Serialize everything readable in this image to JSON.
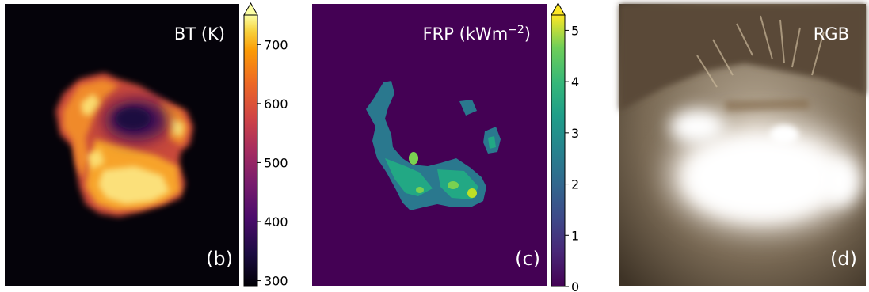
{
  "chart_data": [
    {
      "type": "heatmap",
      "panel_label": "(b)",
      "title": "BT (K)",
      "colormap": "inferno",
      "colorbar": {
        "ticks": [
          300,
          400,
          500,
          600,
          700
        ],
        "tick_labels": [
          "300",
          "400",
          "500",
          "600",
          "700"
        ],
        "range": [
          290,
          750
        ],
        "extend": "max"
      }
    },
    {
      "type": "heatmap",
      "panel_label": "(c)",
      "title_text": "FRP (kWm",
      "title_sup": "−2",
      "title_close": ")",
      "colormap": "viridis",
      "colorbar": {
        "ticks": [
          0,
          1,
          2,
          3,
          4,
          5
        ],
        "tick_labels": [
          "0",
          "1",
          "2",
          "3",
          "4",
          "5"
        ],
        "range": [
          0,
          5.3
        ],
        "extend": "max"
      }
    },
    {
      "type": "image",
      "panel_label": "(d)",
      "title": "RGB"
    }
  ]
}
